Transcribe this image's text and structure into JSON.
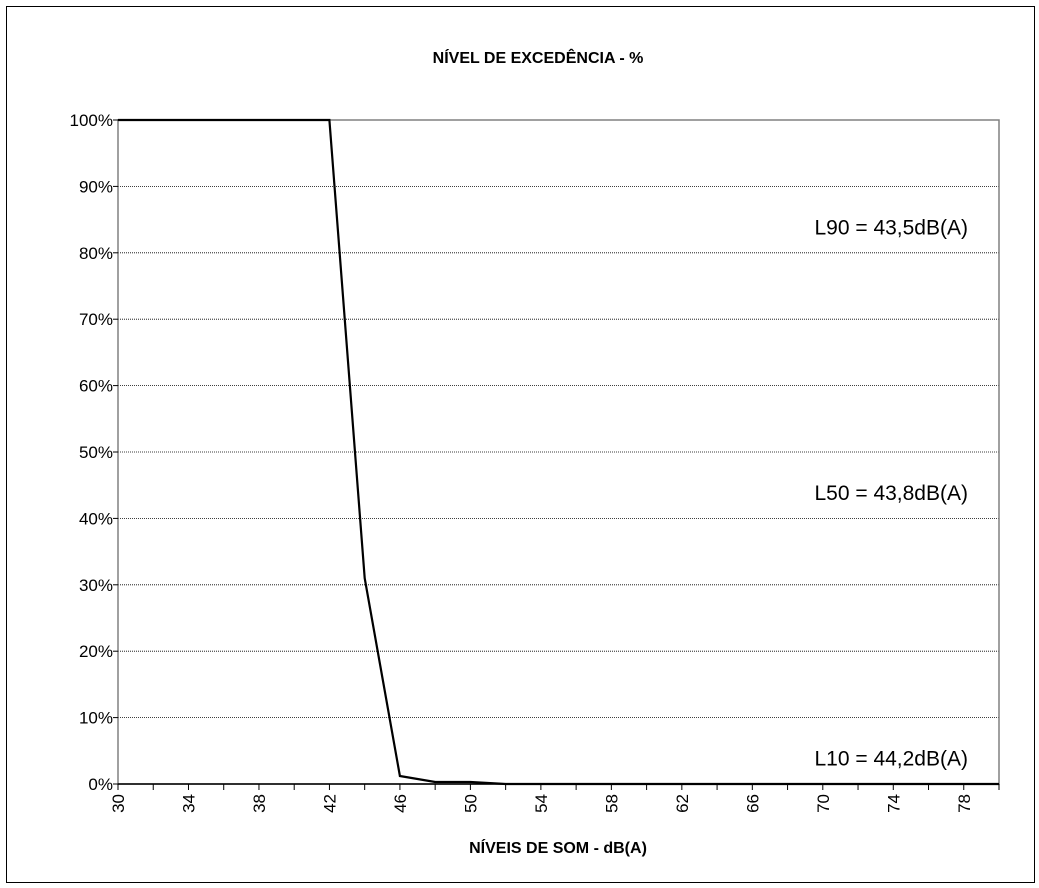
{
  "chart_data": {
    "type": "line",
    "title": "NÍVEL DE EXCEDÊNCIA - %",
    "xlabel": "NÍVEIS DE SOM - dB(A)",
    "ylabel": "",
    "xlim": [
      30,
      80
    ],
    "ylim": [
      0,
      100
    ],
    "x_ticks": [
      "30",
      "34",
      "38",
      "42",
      "46",
      "50",
      "54",
      "58",
      "62",
      "66",
      "70",
      "74",
      "78"
    ],
    "x_tick_values": [
      30,
      34,
      38,
      42,
      46,
      50,
      54,
      58,
      62,
      66,
      70,
      74,
      78
    ],
    "x_minor_step": 2,
    "y_ticks": [
      "0%",
      "10%",
      "20%",
      "30%",
      "40%",
      "50%",
      "60%",
      "70%",
      "80%",
      "90%",
      "100%"
    ],
    "y_tick_values": [
      0,
      10,
      20,
      30,
      40,
      50,
      60,
      70,
      80,
      90,
      100
    ],
    "grid": true,
    "series": [
      {
        "x": [
          30,
          32,
          34,
          36,
          38,
          40,
          42,
          44,
          46,
          48,
          50,
          52,
          54,
          56,
          58,
          60,
          62,
          64,
          66,
          68,
          70,
          72,
          74,
          76,
          78,
          80
        ],
        "y": [
          100,
          100,
          100,
          100,
          100,
          100,
          100,
          31,
          1.2,
          0.3,
          0.3,
          0,
          0,
          0,
          0,
          0,
          0,
          0,
          0,
          0,
          0,
          0,
          0,
          0,
          0,
          0
        ]
      }
    ],
    "annotations": [
      {
        "text": "L90 =  43,5dB(A)",
        "y": 90
      },
      {
        "text": "L50 =  43,8dB(A)",
        "y": 50
      },
      {
        "text": "L10 =  44,2dB(A)",
        "y": 10
      }
    ]
  }
}
